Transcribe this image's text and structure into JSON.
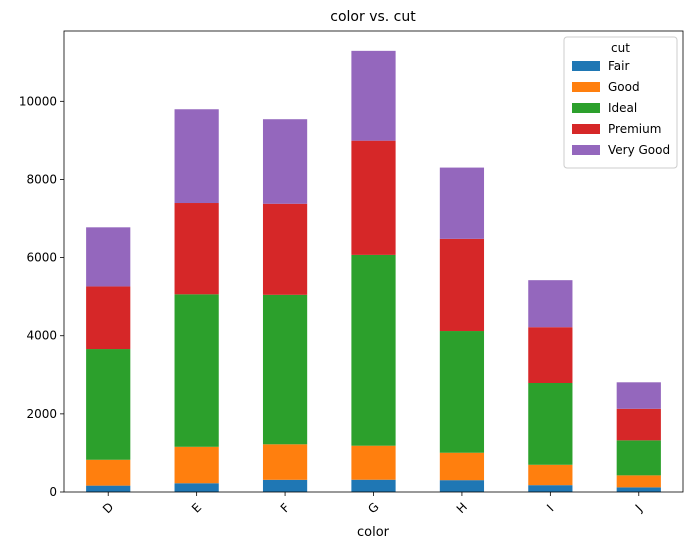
{
  "chart_data": {
    "type": "bar",
    "stacked": true,
    "title": "color vs. cut",
    "xlabel": "color",
    "ylabel": "",
    "categories": [
      "D",
      "E",
      "F",
      "G",
      "H",
      "I",
      "J"
    ],
    "ylim": [
      0,
      11800
    ],
    "yticks": [
      0,
      2000,
      4000,
      6000,
      8000,
      10000
    ],
    "legend": {
      "title": "cut",
      "placement": "top-right"
    },
    "series": [
      {
        "name": "Fair",
        "color": "#1f77b4",
        "values": [
          163,
          224,
          312,
          314,
          303,
          175,
          119
        ]
      },
      {
        "name": "Good",
        "color": "#ff7f0e",
        "values": [
          662,
          933,
          909,
          871,
          702,
          522,
          307
        ]
      },
      {
        "name": "Ideal",
        "color": "#2ca02c",
        "values": [
          2834,
          3903,
          3826,
          4884,
          3115,
          2093,
          896
        ]
      },
      {
        "name": "Premium",
        "color": "#d62728",
        "values": [
          1603,
          2337,
          2331,
          2924,
          2360,
          1428,
          808
        ]
      },
      {
        "name": "Very Good",
        "color": "#9467bd",
        "values": [
          1513,
          2400,
          2164,
          2299,
          1824,
          1204,
          678
        ]
      }
    ]
  }
}
